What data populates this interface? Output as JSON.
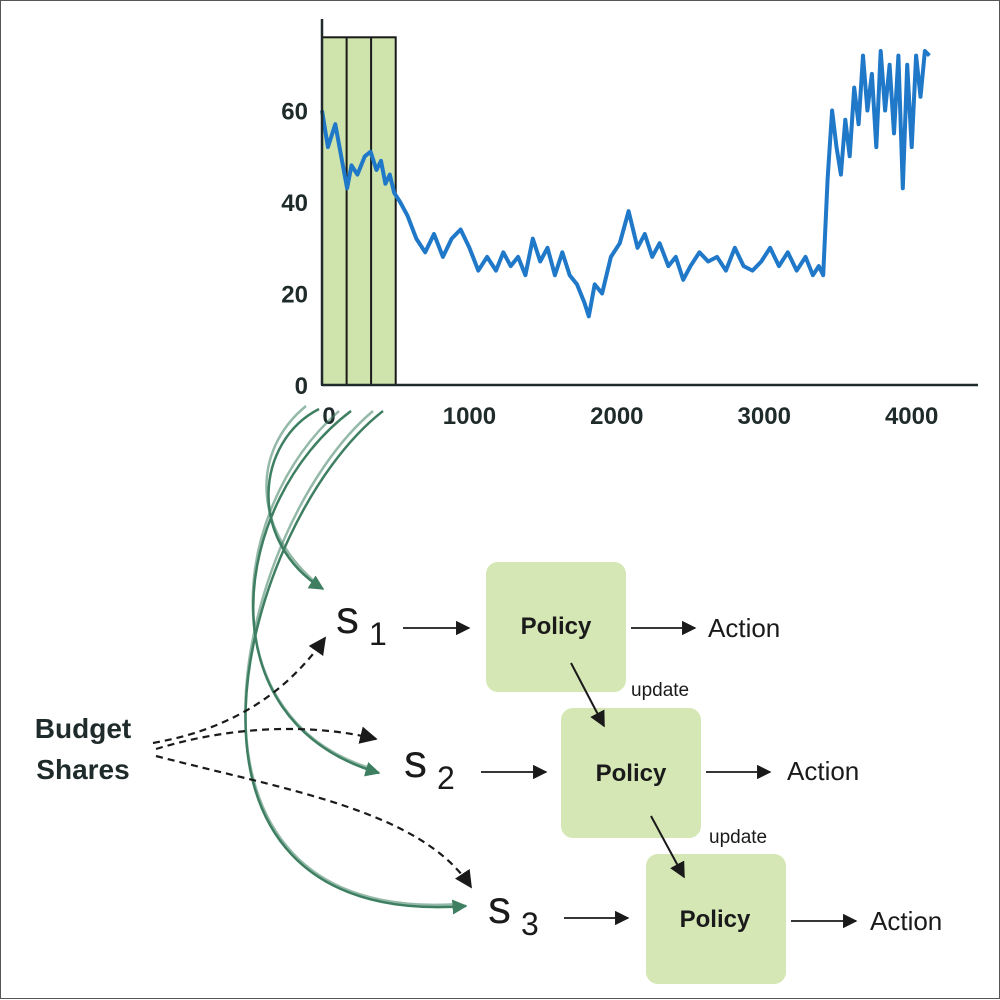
{
  "colors": {
    "series": "#1f78c8",
    "window_fill": "#cfe3ad",
    "policy_fill": "#d4e7b5",
    "green_arrow": "#3e7f62",
    "dark": "#1a1a1a"
  },
  "chart_data": {
    "type": "line",
    "title": "",
    "xlabel": "",
    "ylabel": "",
    "xlim": [
      0,
      4450
    ],
    "ylim": [
      0,
      80
    ],
    "x_ticks": [
      0,
      1000,
      2000,
      3000,
      4000
    ],
    "y_ticks": [
      0,
      20,
      40,
      60
    ],
    "grid": false,
    "window": {
      "x_start": 0,
      "x_end": 500,
      "y_top": 76,
      "divisions": [
        0,
        167,
        333,
        500
      ]
    },
    "series": [
      {
        "name": "",
        "x": [
          0,
          40,
          90,
          130,
          170,
          200,
          240,
          290,
          330,
          370,
          400,
          430,
          460,
          490,
          530,
          580,
          640,
          700,
          760,
          820,
          880,
          940,
          1000,
          1060,
          1120,
          1180,
          1230,
          1280,
          1330,
          1380,
          1430,
          1480,
          1530,
          1580,
          1630,
          1680,
          1730,
          1780,
          1810,
          1850,
          1900,
          1960,
          2020,
          2080,
          2140,
          2190,
          2240,
          2290,
          2350,
          2400,
          2450,
          2500,
          2560,
          2620,
          2680,
          2740,
          2800,
          2860,
          2920,
          2980,
          3040,
          3100,
          3160,
          3220,
          3280,
          3330,
          3370,
          3400,
          3430,
          3460,
          3490,
          3520,
          3550,
          3580,
          3610,
          3640,
          3670,
          3700,
          3730,
          3760,
          3790,
          3820,
          3850,
          3880,
          3910,
          3940,
          3970,
          4000,
          4030,
          4060,
          4090,
          4120
        ],
        "values": [
          60,
          52,
          57,
          50,
          43,
          48,
          46,
          50,
          51,
          47,
          49,
          44,
          46,
          42,
          40,
          37,
          32,
          29,
          33,
          28,
          32,
          34,
          30,
          25,
          28,
          25,
          29,
          26,
          28,
          24,
          32,
          27,
          30,
          24,
          29,
          24,
          22,
          18,
          15,
          22,
          20,
          28,
          31,
          38,
          30,
          33,
          28,
          31,
          26,
          28,
          23,
          26,
          29,
          27,
          28,
          25,
          30,
          26,
          25,
          27,
          30,
          26,
          29,
          25,
          28,
          24,
          26,
          24,
          45,
          60,
          52,
          46,
          58,
          50,
          65,
          57,
          72,
          60,
          68,
          52,
          73,
          60,
          70,
          55,
          72,
          43,
          70,
          52,
          72,
          63,
          73,
          72
        ]
      }
    ]
  },
  "diagram": {
    "source_label": [
      "Budget",
      "Shares"
    ],
    "states": [
      {
        "letter": "s",
        "sub": "1"
      },
      {
        "letter": "s",
        "sub": "2"
      },
      {
        "letter": "s",
        "sub": "3"
      }
    ],
    "policies": [
      "Policy",
      "Policy",
      "Policy"
    ],
    "actions": [
      "Action",
      "Action",
      "Action"
    ],
    "updates": [
      "update",
      "update"
    ]
  }
}
